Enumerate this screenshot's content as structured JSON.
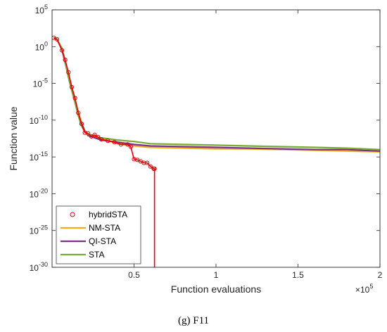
{
  "caption": "(g) F11",
  "chart_data": {
    "type": "line",
    "title": "",
    "xlabel": "Function evaluations",
    "ylabel": "Function value",
    "x_multiplier_label": "×10",
    "x_multiplier_exp": "5",
    "xlim": [
      0,
      200000
    ],
    "ylim_log10": [
      -30,
      5
    ],
    "yscale": "log",
    "x_ticks": [
      {
        "value": 50000,
        "label": "0.5"
      },
      {
        "value": 100000,
        "label": "1"
      },
      {
        "value": 150000,
        "label": "1.5"
      },
      {
        "value": 200000,
        "label": "2"
      }
    ],
    "y_ticks": [
      {
        "exp": 5,
        "base": "10",
        "sup": "5"
      },
      {
        "exp": 0,
        "base": "10",
        "sup": "0"
      },
      {
        "exp": -5,
        "base": "10",
        "sup": "-5"
      },
      {
        "exp": -10,
        "base": "10",
        "sup": "-10"
      },
      {
        "exp": -15,
        "base": "10",
        "sup": "-15"
      },
      {
        "exp": -20,
        "base": "10",
        "sup": "-20"
      },
      {
        "exp": -25,
        "base": "10",
        "sup": "-25"
      },
      {
        "exp": -30,
        "base": "10",
        "sup": "-30"
      }
    ],
    "legend_position": "bottom-left",
    "series": [
      {
        "name": "hybridSTA",
        "color": "#e8000b",
        "marker": "circle",
        "x": [
          1000,
          3000,
          6000,
          8000,
          10000,
          12000,
          14000,
          16000,
          18000,
          20000,
          22000,
          24000,
          26000,
          28000,
          30000,
          34000,
          38000,
          42000,
          46000,
          48000,
          50000,
          52000,
          54000,
          56000,
          58000,
          60000,
          62000,
          62500,
          62500
        ],
        "y_log10": [
          1.2,
          1.0,
          -0.5,
          -1.8,
          -3.5,
          -5.5,
          -7.0,
          -9.0,
          -10.5,
          -11.7,
          -11.8,
          -12.2,
          -12.0,
          -12.3,
          -12.6,
          -12.8,
          -13.0,
          -13.3,
          -13.3,
          -13.6,
          -15.3,
          -15.4,
          -15.6,
          -15.8,
          -15.8,
          -16.3,
          -16.6,
          -16.6,
          -30
        ]
      },
      {
        "name": "NM-STA",
        "color": "#edb120",
        "marker": "none",
        "x": [
          1000,
          3000,
          6000,
          8000,
          10000,
          12000,
          14000,
          16000,
          18000,
          20000,
          22000,
          26000,
          30000,
          40000,
          50000,
          60000,
          80000,
          100000,
          120000,
          140000,
          160000,
          180000,
          200000
        ],
        "y_log10": [
          1.2,
          1.0,
          -0.3,
          -2.0,
          -3.8,
          -5.5,
          -7.2,
          -9.0,
          -10.3,
          -11.5,
          -12.0,
          -12.3,
          -12.5,
          -13.2,
          -13.5,
          -13.7,
          -13.8,
          -13.9,
          -13.9,
          -14.0,
          -14.1,
          -14.2,
          -14.3
        ]
      },
      {
        "name": "QI-STA",
        "color": "#7e2f8e",
        "marker": "none",
        "x": [
          1000,
          3000,
          6000,
          8000,
          10000,
          12000,
          14000,
          16000,
          18000,
          20000,
          22000,
          26000,
          30000,
          40000,
          50000,
          60000,
          80000,
          100000,
          120000,
          140000,
          160000,
          180000,
          200000
        ],
        "y_log10": [
          1.2,
          1.0,
          -0.4,
          -2.2,
          -4.0,
          -5.7,
          -7.4,
          -9.2,
          -10.5,
          -11.5,
          -12.1,
          -12.4,
          -12.7,
          -13.0,
          -13.3,
          -13.5,
          -13.6,
          -13.7,
          -13.8,
          -13.9,
          -14.0,
          -14.0,
          -14.2
        ]
      },
      {
        "name": "STA",
        "color": "#77ac30",
        "marker": "none",
        "x": [
          1000,
          3000,
          6000,
          8000,
          10000,
          12000,
          14000,
          16000,
          18000,
          20000,
          22000,
          26000,
          30000,
          40000,
          50000,
          60000,
          80000,
          100000,
          120000,
          140000,
          160000,
          180000,
          200000
        ],
        "y_log10": [
          1.2,
          1.0,
          -0.2,
          -2.0,
          -4.2,
          -6.0,
          -7.6,
          -9.4,
          -10.8,
          -11.6,
          -12.0,
          -12.2,
          -12.4,
          -12.7,
          -12.9,
          -13.2,
          -13.3,
          -13.4,
          -13.5,
          -13.6,
          -13.7,
          -13.8,
          -14.0
        ]
      }
    ]
  }
}
